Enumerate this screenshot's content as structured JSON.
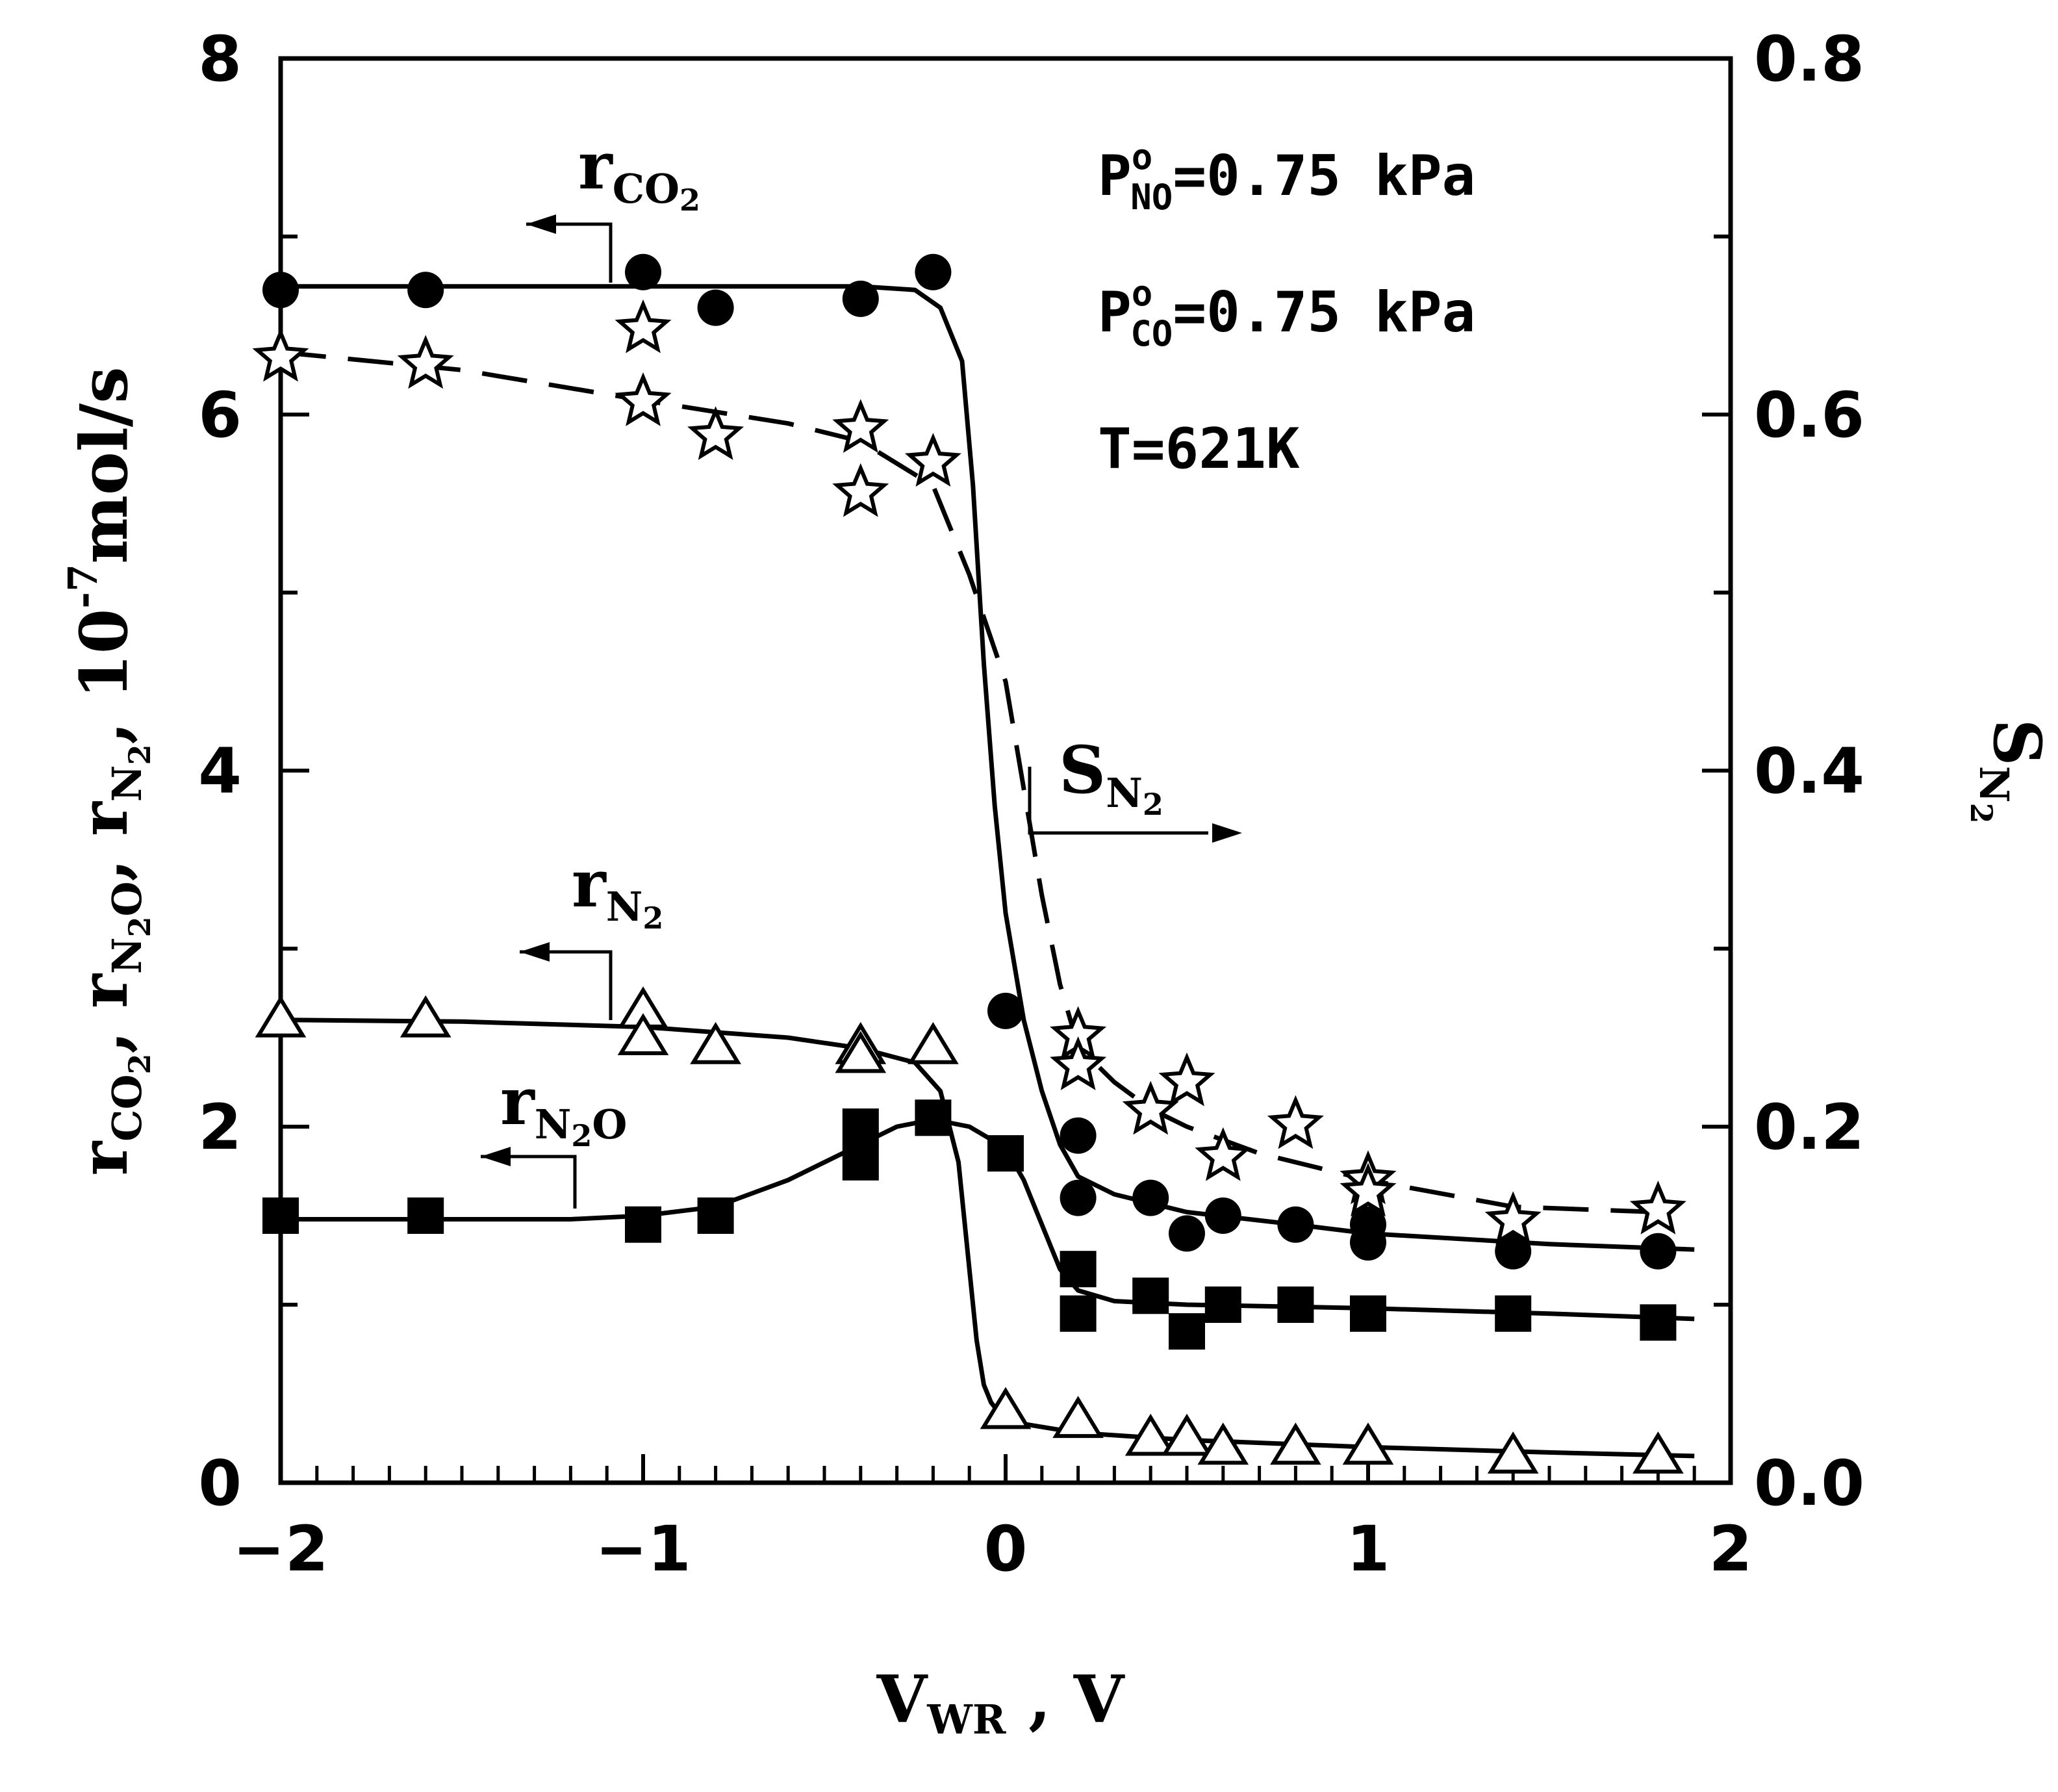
{
  "chart_data": {
    "type": "scatter",
    "title": "",
    "xlabel": {
      "main": "V",
      "sub": "WR",
      "rest": " ,  V"
    },
    "ylabel_left": {
      "parts": [
        {
          "t": "r"
        },
        {
          "t": "CO",
          "sub": true
        },
        {
          "t": "2",
          "sub2": true
        },
        {
          "t": ",  r"
        },
        {
          "t": "N",
          "sub": true
        },
        {
          "t": "2",
          "sub2": true
        },
        {
          "t": "O",
          "sub": true
        },
        {
          "t": ",  r"
        },
        {
          "t": "N",
          "sub": true
        },
        {
          "t": "2",
          "sub2": true
        },
        {
          "t": ",  10"
        },
        {
          "t": "-7",
          "sup": true
        },
        {
          "t": "mol/s"
        }
      ]
    },
    "ylabel_right": {
      "main": "S",
      "sub": "N",
      "sub2": "2"
    },
    "xlim": [
      -2,
      2
    ],
    "ylim_left": [
      0,
      8
    ],
    "ylim_right": [
      0.0,
      0.8
    ],
    "x_ticks": [
      {
        "v": -2,
        "label": "−2"
      },
      {
        "v": -1,
        "label": "−1"
      },
      {
        "v": 0,
        "label": "0"
      },
      {
        "v": 1,
        "label": "1"
      },
      {
        "v": 2,
        "label": "2"
      }
    ],
    "y_left_ticks": [
      {
        "v": 0,
        "label": "0"
      },
      {
        "v": 2,
        "label": "2"
      },
      {
        "v": 4,
        "label": "4"
      },
      {
        "v": 6,
        "label": "6"
      },
      {
        "v": 8,
        "label": "8"
      }
    ],
    "y_right_ticks": [
      {
        "v": 0.0,
        "label": "0.0"
      },
      {
        "v": 0.2,
        "label": "0.2"
      },
      {
        "v": 0.4,
        "label": "0.4"
      },
      {
        "v": 0.6,
        "label": "0.6"
      },
      {
        "v": 0.8,
        "label": "0.8"
      }
    ],
    "annotations": [
      {
        "main": "P",
        "sup": "o",
        "sub": "NO",
        "rest": "=0.75  kPa"
      },
      {
        "main": "P",
        "sup": "o",
        "sub": "CO",
        "rest": "=0.75  kPa"
      },
      {
        "main": "T=621K",
        "sup": "",
        "sub": "",
        "rest": ""
      }
    ],
    "series": [
      {
        "name": "rCO2",
        "label": "r",
        "label_sub": "CO",
        "label_sub2": "2",
        "axis": "left",
        "marker": "circle",
        "line": "solid",
        "x": [
          -2.0,
          -1.6,
          -1.0,
          -0.8,
          -0.4,
          -0.2,
          0.0,
          0.2,
          0.2,
          0.4,
          0.5,
          0.6,
          0.8,
          1.0,
          1.0,
          1.4,
          1.8
        ],
        "y": [
          6.7,
          6.7,
          6.8,
          6.6,
          6.65,
          6.8,
          2.65,
          1.95,
          1.6,
          1.6,
          1.4,
          1.5,
          1.45,
          1.45,
          1.35,
          1.3,
          1.3
        ],
        "curve_x": [
          -2.0,
          -1.0,
          -0.4,
          -0.25,
          -0.18,
          -0.12,
          -0.09,
          -0.06,
          -0.03,
          0.0,
          0.05,
          0.1,
          0.15,
          0.2,
          0.3,
          0.5,
          0.8,
          1.0,
          1.5,
          1.9
        ],
        "curve_y": [
          6.72,
          6.72,
          6.72,
          6.7,
          6.6,
          6.3,
          5.6,
          4.6,
          3.8,
          3.2,
          2.6,
          2.2,
          1.9,
          1.72,
          1.62,
          1.52,
          1.45,
          1.4,
          1.34,
          1.31
        ]
      },
      {
        "name": "SN2",
        "label": "S",
        "label_sub": "N",
        "label_sub2": "2",
        "axis": "right",
        "marker": "star",
        "line": "dashed",
        "x": [
          -2.0,
          -1.6,
          -1.0,
          -1.0,
          -0.8,
          -0.4,
          -0.4,
          -0.2,
          0.2,
          0.2,
          0.4,
          0.5,
          0.6,
          0.8,
          1.0,
          1.0,
          1.4,
          1.8
        ],
        "y": [
          0.632,
          0.628,
          0.648,
          0.607,
          0.588,
          0.592,
          0.556,
          0.573,
          0.251,
          0.234,
          0.209,
          0.225,
          0.183,
          0.201,
          0.17,
          0.163,
          0.147,
          0.153
        ],
        "curve_x": [
          -2.0,
          -1.5,
          -1.0,
          -0.6,
          -0.4,
          -0.2,
          -0.1,
          0.0,
          0.05,
          0.1,
          0.15,
          0.2,
          0.3,
          0.4,
          0.5,
          0.7,
          1.0,
          1.4,
          1.8
        ],
        "curve_y": [
          0.635,
          0.625,
          0.608,
          0.595,
          0.585,
          0.56,
          0.51,
          0.45,
          0.39,
          0.33,
          0.28,
          0.245,
          0.225,
          0.21,
          0.2,
          0.185,
          0.17,
          0.155,
          0.152
        ]
      },
      {
        "name": "rN2",
        "label": "r",
        "label_sub": "N",
        "label_sub2": "2",
        "axis": "left",
        "marker": "triangle",
        "line": "solid",
        "x": [
          -2.0,
          -1.6,
          -1.0,
          -1.0,
          -0.8,
          -0.4,
          -0.4,
          -0.2,
          0.0,
          0.2,
          0.4,
          0.5,
          0.6,
          0.8,
          1.0,
          1.4,
          1.8
        ],
        "y": [
          2.6,
          2.6,
          2.65,
          2.5,
          2.45,
          2.45,
          2.4,
          2.45,
          0.4,
          0.35,
          0.25,
          0.25,
          0.2,
          0.2,
          0.2,
          0.15,
          0.15
        ],
        "curve_x": [
          -2.0,
          -1.5,
          -1.0,
          -0.6,
          -0.4,
          -0.25,
          -0.18,
          -0.13,
          -0.1,
          -0.08,
          -0.06,
          -0.04,
          -0.02,
          0.0,
          0.05,
          0.2,
          0.5,
          1.0,
          1.5,
          1.9
        ],
        "curve_y": [
          2.6,
          2.59,
          2.56,
          2.5,
          2.44,
          2.36,
          2.2,
          1.8,
          1.2,
          0.8,
          0.55,
          0.45,
          0.4,
          0.36,
          0.33,
          0.28,
          0.24,
          0.2,
          0.17,
          0.15
        ]
      },
      {
        "name": "rN2O",
        "label": "r",
        "label_sub": "N",
        "label_sub2": "2",
        "label_sub3": "O",
        "axis": "left",
        "marker": "square",
        "line": "solid",
        "x": [
          -2.0,
          -1.6,
          -1.0,
          -0.8,
          -0.4,
          -0.4,
          -0.2,
          0.0,
          0.2,
          0.2,
          0.4,
          0.5,
          0.6,
          0.8,
          1.0,
          1.4,
          1.8
        ],
        "y": [
          1.5,
          1.5,
          1.45,
          1.5,
          2.0,
          1.8,
          2.05,
          1.85,
          1.2,
          0.95,
          1.05,
          0.85,
          1.0,
          1.0,
          0.95,
          0.95,
          0.9
        ],
        "curve_x": [
          -2.0,
          -1.5,
          -1.2,
          -1.0,
          -0.8,
          -0.6,
          -0.4,
          -0.3,
          -0.2,
          -0.1,
          0.0,
          0.05,
          0.1,
          0.15,
          0.2,
          0.3,
          0.5,
          1.0,
          1.5,
          1.9
        ],
        "curve_y": [
          1.48,
          1.48,
          1.48,
          1.5,
          1.55,
          1.7,
          1.9,
          2.0,
          2.04,
          2.0,
          1.88,
          1.7,
          1.45,
          1.2,
          1.08,
          1.02,
          1.0,
          0.98,
          0.95,
          0.92
        ]
      }
    ]
  }
}
